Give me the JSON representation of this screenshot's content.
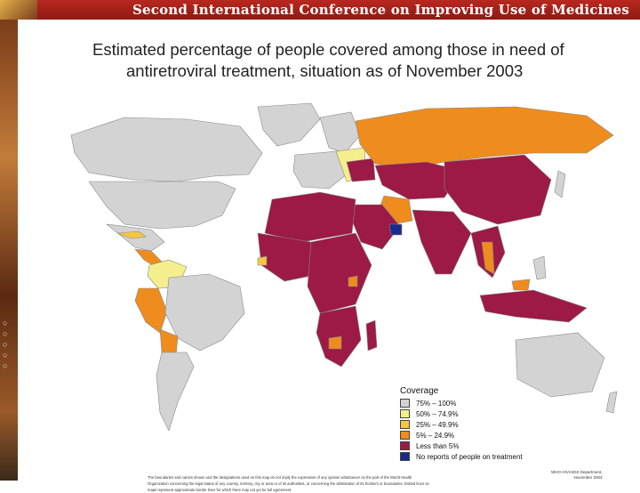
{
  "banner": {
    "title": "Second International Conference on Improving Use of Medicines",
    "color": "#a8231b"
  },
  "map": {
    "title_line1": "Estimated percentage of people covered among those in need of",
    "title_line2": "antiretroviral treatment, situation as of November 2003",
    "legend": {
      "title": "Coverage",
      "items": [
        {
          "label": "75% – 100%",
          "color": "#d3d3d3"
        },
        {
          "label": "50% – 74.9%",
          "color": "#f5ee8c"
        },
        {
          "label": "25% – 49.9%",
          "color": "#f6c640"
        },
        {
          "label": "5% – 24.9%",
          "color": "#ee8c1e"
        },
        {
          "label": "Less than 5%",
          "color": "#9c1a45"
        },
        {
          "label": "No reports of people on treatment",
          "color": "#1a2a8a"
        }
      ]
    },
    "disclaimer": "The boundaries and names shown and the designations used on this map do not imply the expression of any opinion whatsoever on the part of the World Health Organization concerning the legal status of any country, territory, city or area or of its authorities, or concerning the delimitation of its frontiers or boundaries. Dotted lines on maps represent approximate border lines for which there may not yet be full agreement.",
    "credit_line1": "WHO HIV/AIDS Department,",
    "credit_line2": "November 2003"
  }
}
